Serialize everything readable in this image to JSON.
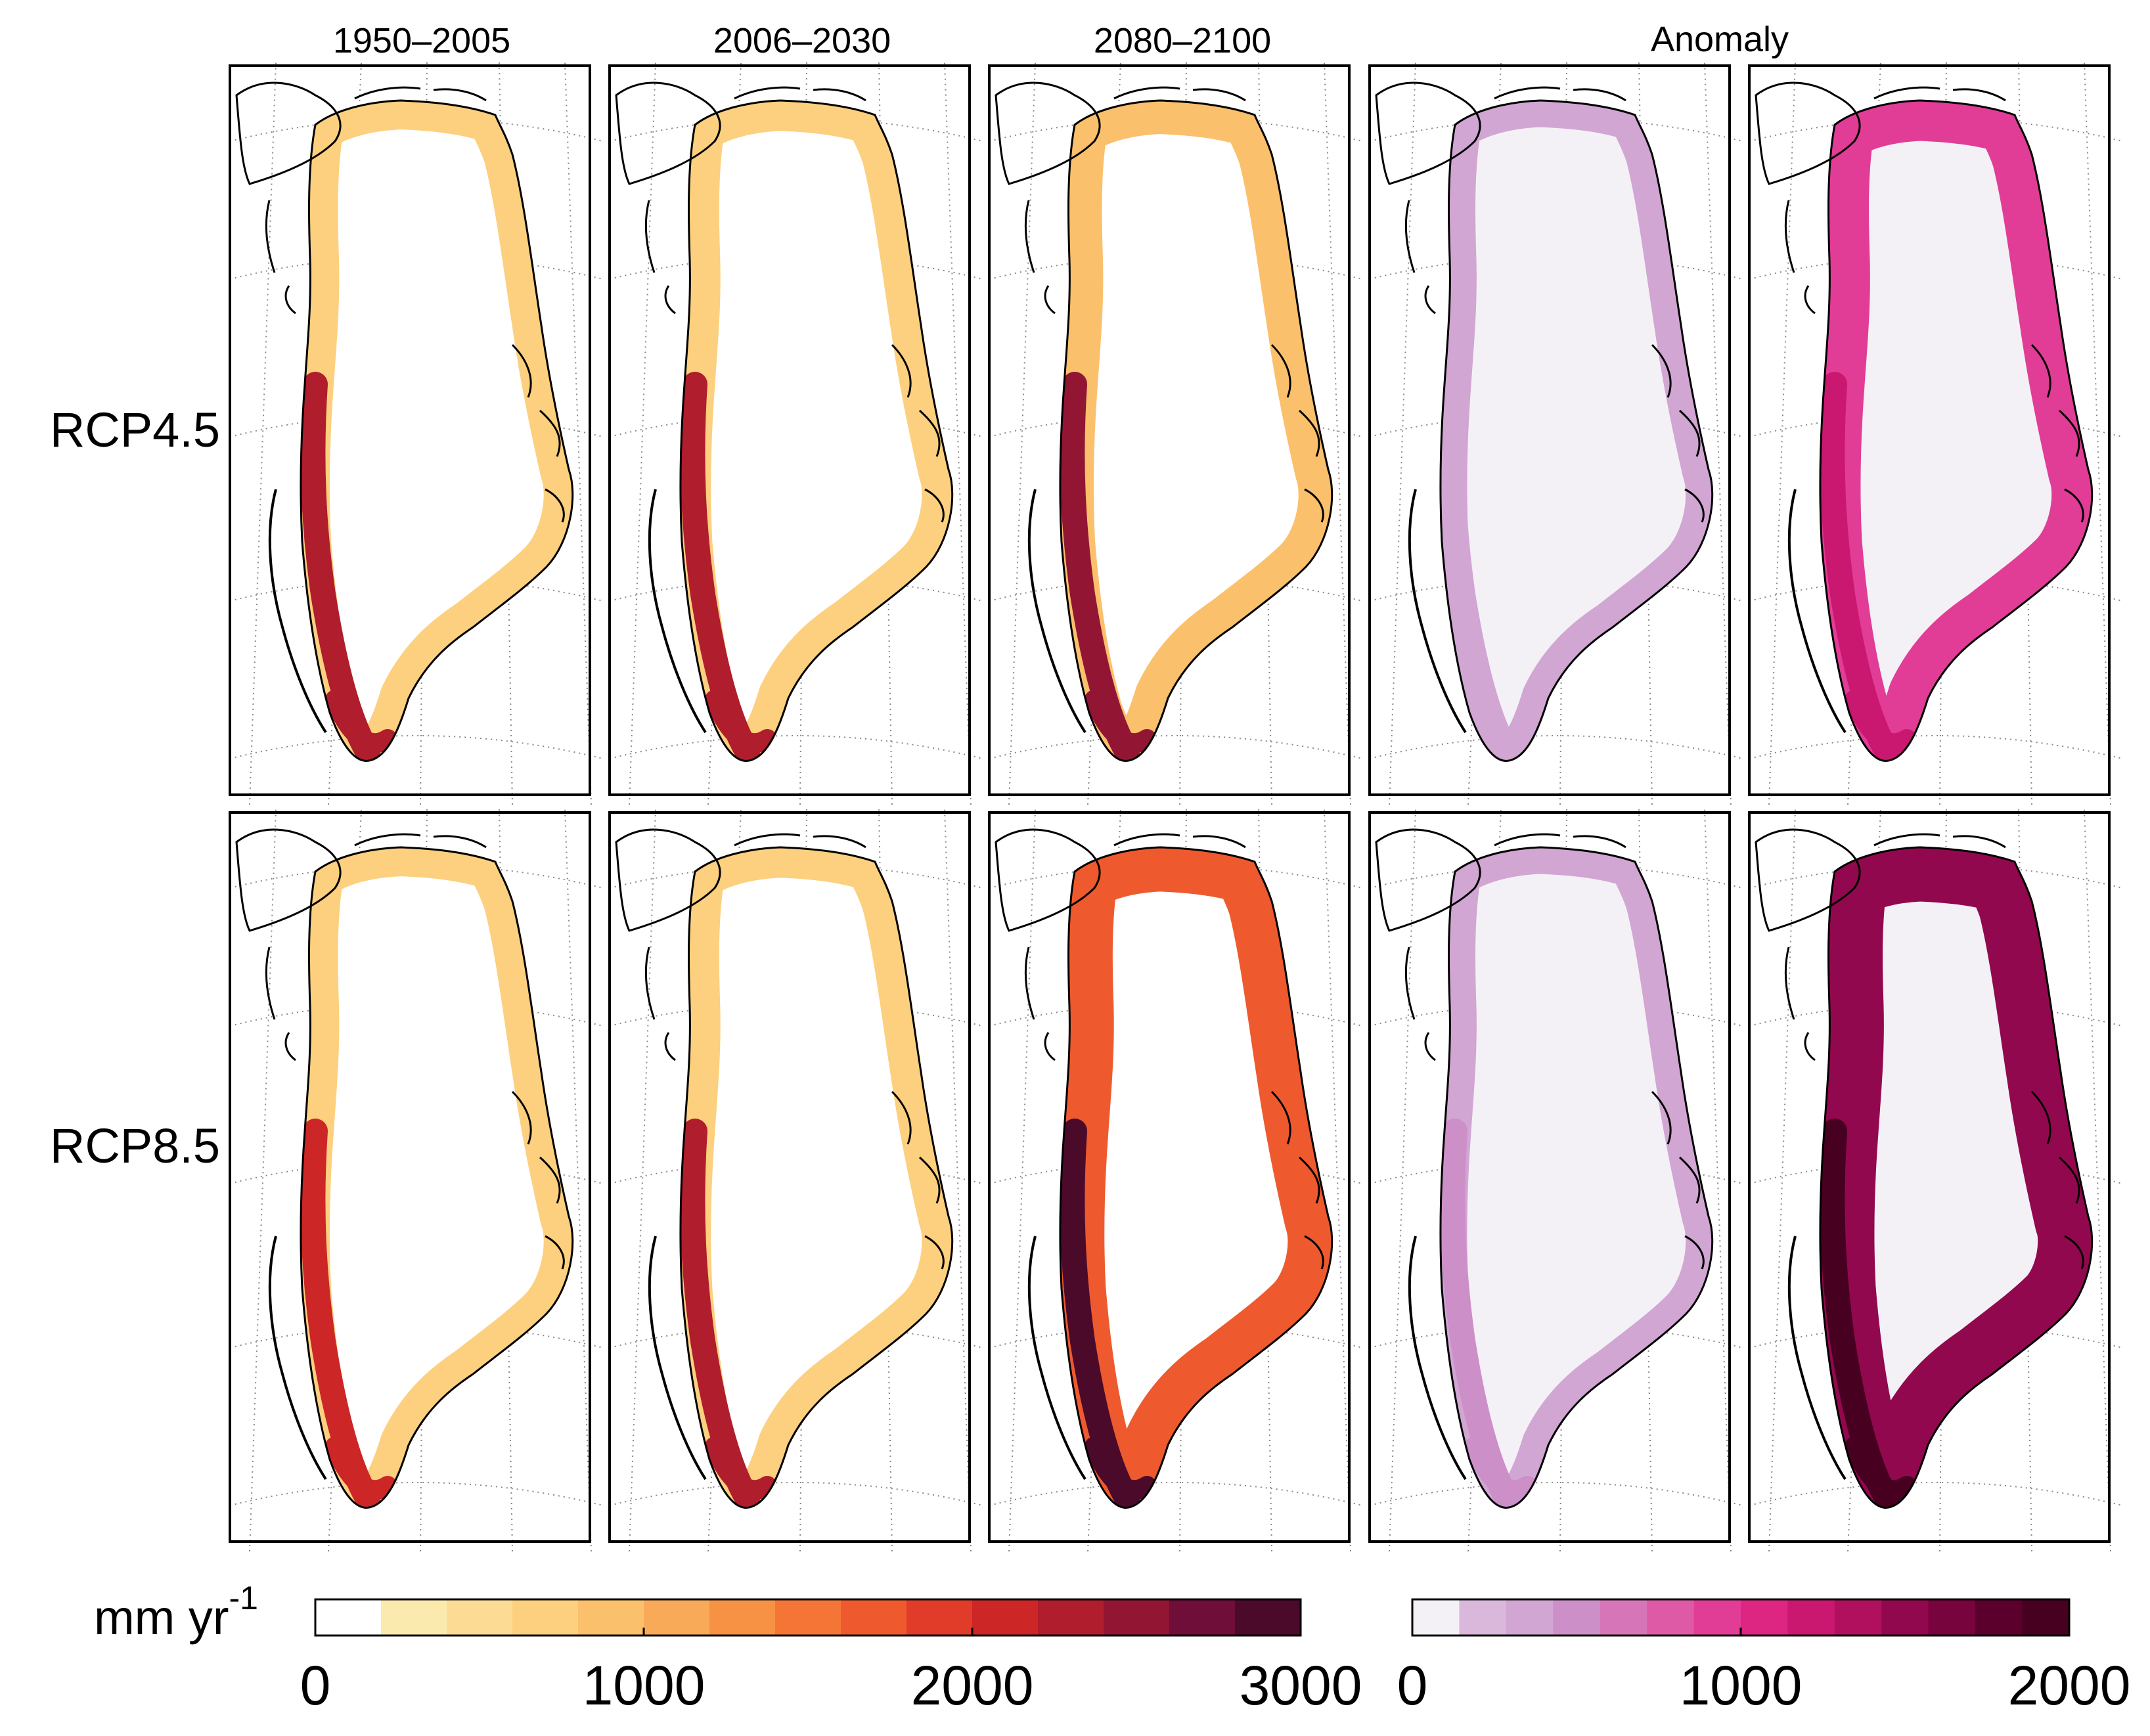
{
  "figure": {
    "column_titles": [
      "1950–2005",
      "2006–2030",
      "2080–2100"
    ],
    "anomaly_title": "Anomaly",
    "row_labels": [
      "RCP4.5",
      "RCP8.5"
    ],
    "panels": [
      {
        "row": "RCP4.5",
        "column": "1950–2005",
        "colormap": "absolute",
        "edge_value_mm_yr": 600,
        "peak_value_mm_yr": 2200
      },
      {
        "row": "RCP4.5",
        "column": "2006–2030",
        "colormap": "absolute",
        "edge_value_mm_yr": 700,
        "peak_value_mm_yr": 2300
      },
      {
        "row": "RCP4.5",
        "column": "2080–2100",
        "colormap": "absolute",
        "edge_value_mm_yr": 900,
        "peak_value_mm_yr": 2400
      },
      {
        "row": "RCP4.5",
        "column": "Anomaly",
        "colormap": "anomaly",
        "edge_value_mm_yr": 300,
        "peak_value_mm_yr": 400
      },
      {
        "row": "RCP4.5",
        "column": "Anomaly",
        "colormap": "anomaly",
        "edge_value_mm_yr": 900,
        "peak_value_mm_yr": 1200
      },
      {
        "row": "RCP8.5",
        "column": "1950–2005",
        "colormap": "absolute",
        "edge_value_mm_yr": 600,
        "peak_value_mm_yr": 2100
      },
      {
        "row": "RCP8.5",
        "column": "2006–2030",
        "colormap": "absolute",
        "edge_value_mm_yr": 700,
        "peak_value_mm_yr": 2300
      },
      {
        "row": "RCP8.5",
        "column": "2080–2100",
        "colormap": "absolute",
        "edge_value_mm_yr": 1600,
        "peak_value_mm_yr": 2900
      },
      {
        "row": "RCP8.5",
        "column": "Anomaly",
        "colormap": "anomaly",
        "edge_value_mm_yr": 300,
        "peak_value_mm_yr": 450
      },
      {
        "row": "RCP8.5",
        "column": "Anomaly",
        "colormap": "anomaly",
        "edge_value_mm_yr": 1500,
        "peak_value_mm_yr": 1900
      }
    ]
  },
  "colorbar_absolute": {
    "unit_base": "mm yr",
    "unit_exponent": "-1",
    "min": 0,
    "max": 3000,
    "tick_labels": [
      "0",
      "1000",
      "2000",
      "3000"
    ],
    "tick_values": [
      0,
      1000,
      2000,
      3000
    ],
    "colors": [
      "#ffffff",
      "#fbeaae",
      "#fcdc94",
      "#fcd07e",
      "#fbc06b",
      "#f9aa58",
      "#f79144",
      "#f47536",
      "#ee5a2e",
      "#e03c29",
      "#cc2627",
      "#b01d2c",
      "#921633",
      "#6f0e38",
      "#4c0a2b"
    ]
  },
  "colorbar_anomaly": {
    "min": 0,
    "max": 2000,
    "tick_labels": [
      "0",
      "1000",
      "2000"
    ],
    "tick_values": [
      0,
      1000,
      2000
    ],
    "colors": [
      "#f3f1f6",
      "#d9b8dc",
      "#d1a6d3",
      "#cd8fc8",
      "#d676b8",
      "#de5aa7",
      "#e13d96",
      "#dd2582",
      "#ca1870",
      "#b0105e",
      "#92084e",
      "#77043d",
      "#5b002c",
      "#470020"
    ]
  }
}
